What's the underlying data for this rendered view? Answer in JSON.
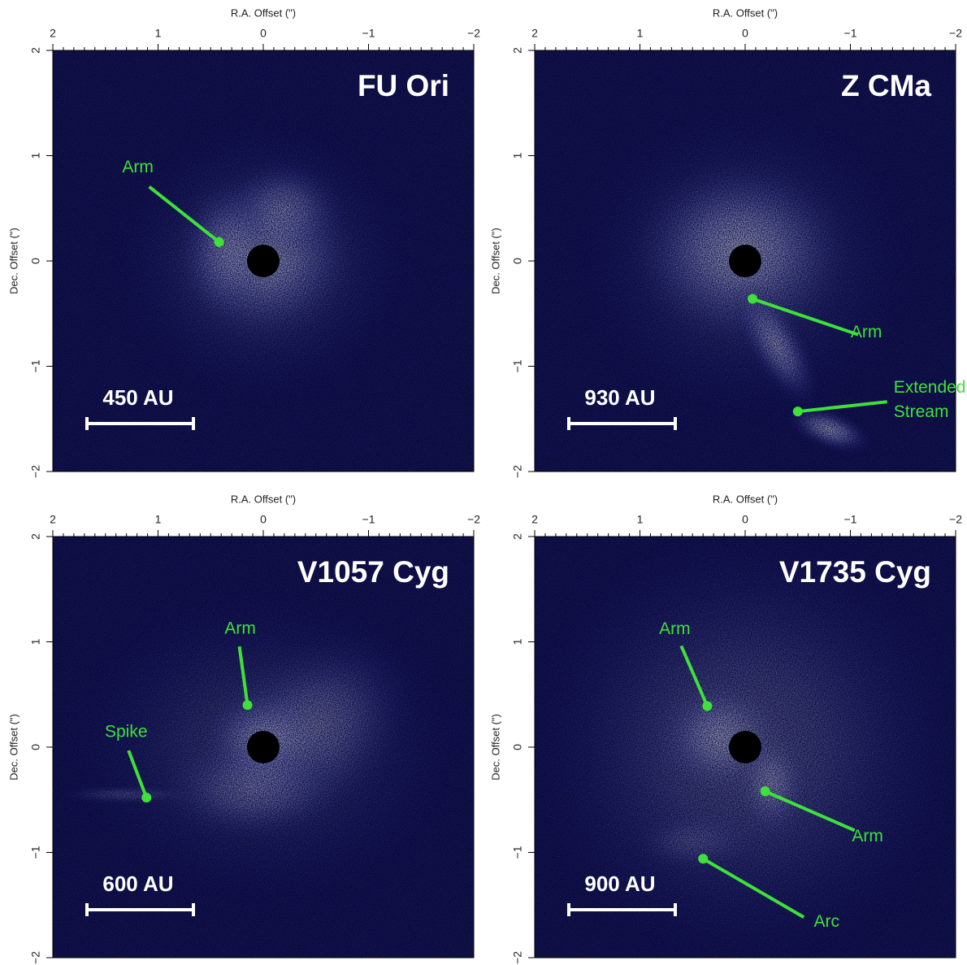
{
  "chart_data": [
    {
      "type": "image",
      "title": "FU Ori",
      "x_label": "R.A. Offset (\")",
      "y_label": "Dec. Offset (\")",
      "xlim": [
        2,
        -2
      ],
      "ylim": [
        -2,
        2
      ],
      "xticks": [
        2,
        1,
        0,
        {
          "value": -1,
          "label": "−1"
        },
        {
          "value": -2,
          "label": "−2"
        }
      ],
      "yticks": [
        {
          "value": -2,
          "label": "−2"
        },
        {
          "value": -1,
          "label": "−1"
        },
        0,
        1,
        2
      ],
      "scale_bar": "450 AU",
      "annotations": [
        {
          "text": "Arm",
          "x": 0.42,
          "y": 0.18
        }
      ]
    },
    {
      "type": "image",
      "title": "Z CMa",
      "x_label": "R.A. Offset (\")",
      "y_label": "Dec. Offset (\")",
      "xlim": [
        2,
        -2
      ],
      "ylim": [
        -2,
        2
      ],
      "xticks": [
        2,
        1,
        0,
        {
          "value": -1,
          "label": "−1"
        },
        {
          "value": -2,
          "label": "−2"
        }
      ],
      "yticks": [
        {
          "value": -2,
          "label": "−2"
        },
        {
          "value": -1,
          "label": "−1"
        },
        0,
        1,
        2
      ],
      "scale_bar": "930 AU",
      "annotations": [
        {
          "text": "Arm",
          "x": -0.07,
          "y": -0.36
        },
        {
          "text": "Extended Stream",
          "x": -0.5,
          "y": -1.43
        }
      ]
    },
    {
      "type": "image",
      "title": "V1057 Cyg",
      "x_label": "R.A. Offset (\")",
      "y_label": "Dec. Offset (\")",
      "xlim": [
        2,
        -2
      ],
      "ylim": [
        -2,
        2
      ],
      "xticks": [
        2,
        1,
        0,
        {
          "value": -1,
          "label": "−1"
        },
        {
          "value": -2,
          "label": "−2"
        }
      ],
      "yticks": [
        {
          "value": -2,
          "label": "−2"
        },
        {
          "value": -1,
          "label": "−1"
        },
        0,
        1,
        2
      ],
      "scale_bar": "600 AU",
      "annotations": [
        {
          "text": "Arm",
          "x": 0.15,
          "y": 0.4
        },
        {
          "text": "Spike",
          "x": 1.11,
          "y": -0.48
        }
      ]
    },
    {
      "type": "image",
      "title": "V1735 Cyg",
      "x_label": "R.A. Offset (\")",
      "y_label": "Dec. Offset (\")",
      "xlim": [
        2,
        -2
      ],
      "ylim": [
        -2,
        2
      ],
      "xticks": [
        2,
        1,
        0,
        {
          "value": -1,
          "label": "−1"
        },
        {
          "value": -2,
          "label": "−2"
        }
      ],
      "yticks": [
        {
          "value": -2,
          "label": "−2"
        },
        {
          "value": -1,
          "label": "−1"
        },
        0,
        1,
        2
      ],
      "scale_bar": "900 AU",
      "annotations": [
        {
          "text": "Arm",
          "x": 0.36,
          "y": 0.39
        },
        {
          "text": "Arm",
          "x": -0.19,
          "y": -0.42
        },
        {
          "text": "Arc",
          "x": 0.4,
          "y": -1.06
        }
      ]
    }
  ]
}
